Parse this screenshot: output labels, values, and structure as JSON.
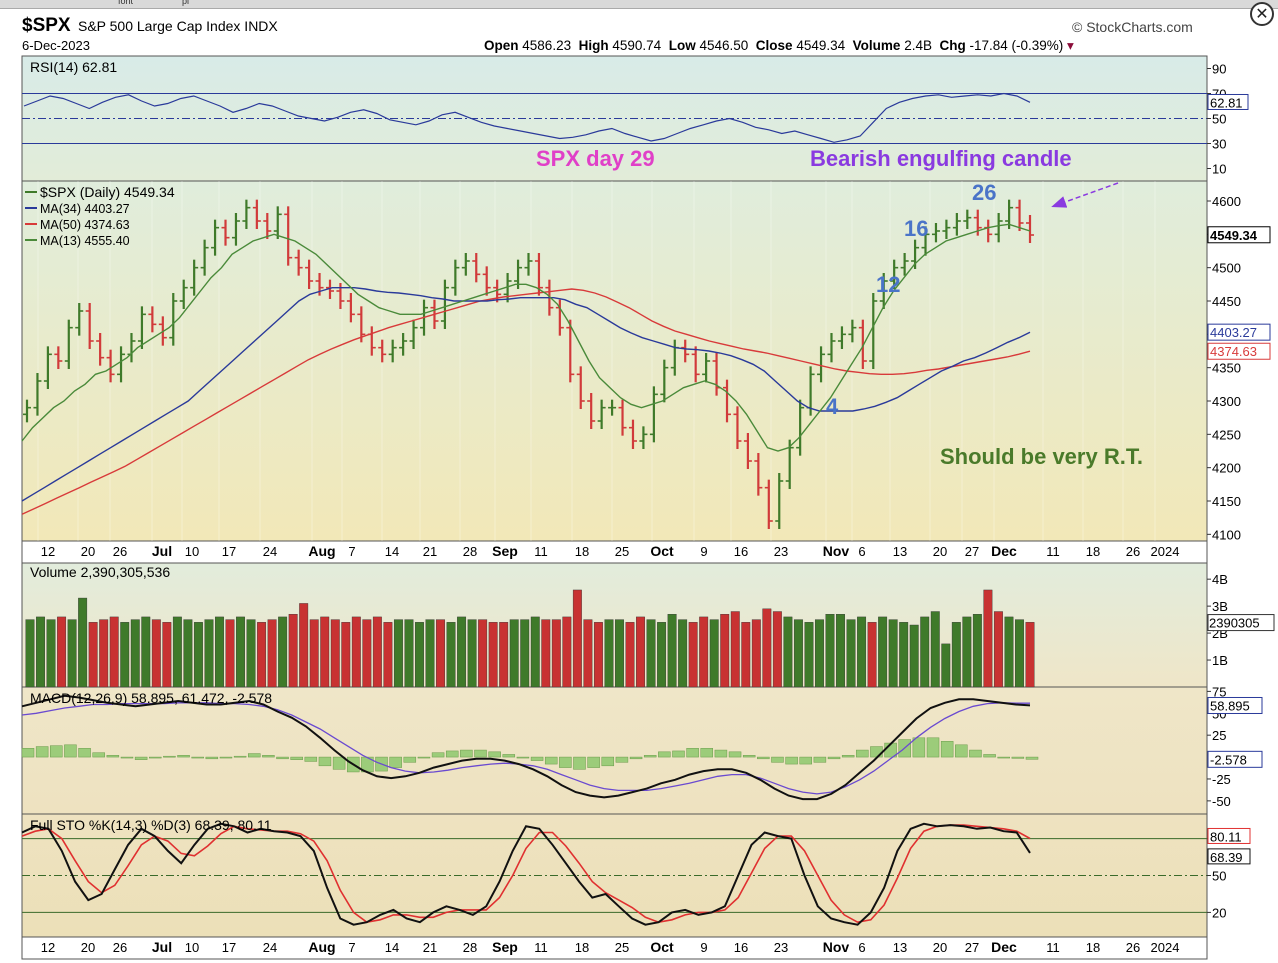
{
  "toolbar_fragment": [
    "font",
    "pl"
  ],
  "header": {
    "symbol": "$SPX",
    "name": "S&P 500 Large Cap Index  INDX",
    "date": "6-Dec-2023",
    "brand": "© StockCharts.com",
    "open_label": "Open",
    "open": "4586.23",
    "high_label": "High",
    "high": "4590.74",
    "low_label": "Low",
    "low": "4546.50",
    "close_label": "Close",
    "close": "4549.34",
    "volume_label": "Volume",
    "volume": "2.4B",
    "chg_label": "Chg",
    "chg": "-17.84 (-0.39%)"
  },
  "colors": {
    "up": "#3f7a2a",
    "down": "#d13a3a",
    "ma34": "#2a3a9a",
    "ma50": "#d83a3a",
    "ma13": "#4a8a3a",
    "annot_pink": "#e040c8",
    "annot_purple": "#8a3ae0",
    "annot_blue": "#4a74c8",
    "annot_green": "#4a7a2a"
  },
  "chart_data": [
    {
      "type": "line",
      "panel": "rsi",
      "legend": "RSI(14) 62.81",
      "ylim": [
        0,
        100
      ],
      "y_ticks": [
        "90",
        "70",
        "50",
        "30",
        "10"
      ],
      "last_value_label": "62.81",
      "overbought": 70,
      "oversold": 30,
      "values": [
        60,
        64,
        68,
        66,
        62,
        58,
        63,
        67,
        69,
        64,
        60,
        62,
        66,
        68,
        64,
        60,
        55,
        58,
        62,
        60,
        56,
        52,
        50,
        48,
        51,
        55,
        57,
        54,
        49,
        47,
        45,
        48,
        53,
        55,
        51,
        47,
        44,
        42,
        40,
        38,
        36,
        34,
        35,
        37,
        40,
        42,
        38,
        35,
        32,
        34,
        38,
        42,
        45,
        48,
        50,
        47,
        43,
        41,
        38,
        40,
        37,
        34,
        31,
        33,
        36,
        47,
        58,
        63,
        66,
        68,
        69,
        67,
        68,
        69,
        68,
        70,
        68,
        63
      ]
    },
    {
      "type": "candlestick",
      "panel": "price",
      "legend": [
        "$SPX (Daily) 4549.34",
        "MA(34) 4403.27",
        "MA(50) 4374.63",
        "MA(13) 4555.40"
      ],
      "ylim": [
        4090,
        4630
      ],
      "y_ticks": [
        "4600",
        "4550",
        "4500",
        "4450",
        "4400",
        "4350",
        "4300",
        "4250",
        "4200",
        "4150",
        "4100"
      ],
      "last_value_labels": [
        "4549.34",
        "4403.27",
        "4374.63"
      ],
      "x_ticks": [
        "12",
        "20",
        "26",
        "Jul",
        "10",
        "17",
        "24",
        "Aug",
        "7",
        "14",
        "21",
        "28",
        "Sep",
        "11",
        "18",
        "25",
        "Oct",
        "9",
        "16",
        "23",
        "Nov",
        "6",
        "13",
        "20",
        "27",
        "Dec",
        "11",
        "18",
        "26",
        "2024"
      ],
      "closes": [
        4290,
        4330,
        4370,
        4360,
        4410,
        4435,
        4390,
        4365,
        4340,
        4370,
        4390,
        4430,
        4415,
        4395,
        4450,
        4470,
        4500,
        4530,
        4560,
        4545,
        4570,
        4590,
        4570,
        4555,
        4580,
        4515,
        4500,
        4480,
        4470,
        4465,
        4450,
        4430,
        4400,
        4380,
        4370,
        4380,
        4390,
        4410,
        4440,
        4420,
        4470,
        4500,
        4510,
        4490,
        4470,
        4460,
        4480,
        4500,
        4510,
        4470,
        4440,
        4410,
        4340,
        4300,
        4270,
        4290,
        4290,
        4260,
        4240,
        4250,
        4310,
        4350,
        4380,
        4370,
        4340,
        4360,
        4320,
        4280,
        4240,
        4210,
        4170,
        4120,
        4180,
        4230,
        4290,
        4340,
        4370,
        4390,
        4400,
        4410,
        4360,
        4450,
        4480,
        4500,
        4510,
        4530,
        4550,
        4555,
        4560,
        4570,
        4575,
        4560,
        4550,
        4570,
        4590,
        4567,
        4549
      ],
      "ma13": [
        4240,
        4260,
        4275,
        4290,
        4300,
        4315,
        4325,
        4340,
        4345,
        4355,
        4365,
        4380,
        4390,
        4400,
        4410,
        4425,
        4445,
        4465,
        4485,
        4500,
        4520,
        4530,
        4540,
        4545,
        4550,
        4545,
        4540,
        4530,
        4520,
        4505,
        4490,
        4475,
        4460,
        4450,
        4440,
        4435,
        4430,
        4430,
        4430,
        4435,
        4440,
        4445,
        4450,
        4455,
        4460,
        4465,
        4470,
        4475,
        4475,
        4470,
        4460,
        4445,
        4420,
        4390,
        4360,
        4335,
        4320,
        4305,
        4295,
        4290,
        4295,
        4300,
        4310,
        4320,
        4325,
        4330,
        4325,
        4315,
        4300,
        4280,
        4255,
        4230,
        4225,
        4230,
        4245,
        4265,
        4285,
        4305,
        4330,
        4355,
        4380,
        4410,
        4440,
        4465,
        4485,
        4505,
        4520,
        4530,
        4540,
        4545,
        4550,
        4555,
        4560,
        4563,
        4565,
        4560,
        4555
      ],
      "ma34": [
        4150,
        4160,
        4170,
        4180,
        4190,
        4200,
        4210,
        4220,
        4230,
        4240,
        4250,
        4260,
        4270,
        4280,
        4290,
        4300,
        4315,
        4330,
        4345,
        4360,
        4375,
        4390,
        4405,
        4420,
        4435,
        4450,
        4460,
        4465,
        4470,
        4470,
        4470,
        4468,
        4465,
        4463,
        4462,
        4460,
        4458,
        4455,
        4453,
        4450,
        4450,
        4450,
        4450,
        4452,
        4453,
        4455,
        4455,
        4455,
        4455,
        4452,
        4445,
        4440,
        4430,
        4420,
        4410,
        4402,
        4395,
        4390,
        4385,
        4380,
        4378,
        4377,
        4375,
        4372,
        4368,
        4362,
        4355,
        4345,
        4330,
        4315,
        4300,
        4290,
        4285,
        4285,
        4285,
        4285,
        4288,
        4292,
        4298,
        4305,
        4315,
        4325,
        4335,
        4345,
        4352,
        4360,
        4365,
        4372,
        4380,
        4388,
        4395,
        4403
      ],
      "ma50": [
        4130,
        4138,
        4146,
        4154,
        4162,
        4170,
        4178,
        4186,
        4194,
        4202,
        4212,
        4222,
        4232,
        4242,
        4252,
        4262,
        4272,
        4282,
        4292,
        4302,
        4312,
        4322,
        4332,
        4342,
        4352,
        4362,
        4370,
        4378,
        4385,
        4392,
        4398,
        4404,
        4410,
        4415,
        4420,
        4425,
        4430,
        4435,
        4440,
        4445,
        4450,
        4453,
        4456,
        4458,
        4460,
        4462,
        4464,
        4466,
        4468,
        4466,
        4462,
        4456,
        4448,
        4440,
        4430,
        4420,
        4412,
        4405,
        4400,
        4395,
        4390,
        4386,
        4382,
        4378,
        4375,
        4372,
        4368,
        4364,
        4360,
        4356,
        4352,
        4348,
        4345,
        4343,
        4341,
        4340,
        4340,
        4341,
        4343,
        4346,
        4348,
        4351,
        4354,
        4357,
        4360,
        4363,
        4366,
        4370,
        4374.63
      ],
      "annotations": [
        "SPX day 29",
        "Bearish engulfing candle",
        "26",
        "16",
        "12",
        "4",
        "Should be very R.T."
      ]
    },
    {
      "type": "bar",
      "panel": "volume",
      "legend": "Volume 2,390,305,536",
      "y_ticks": [
        "4B",
        "3B",
        "2B",
        "1B"
      ],
      "last_value_label": "2390305",
      "unit": "B",
      "values": [
        2.5,
        2.6,
        2.5,
        2.6,
        2.5,
        3.3,
        2.4,
        2.5,
        2.6,
        2.4,
        2.5,
        2.6,
        2.5,
        2.4,
        2.6,
        2.5,
        2.4,
        2.5,
        2.6,
        2.5,
        2.6,
        2.5,
        2.4,
        2.5,
        2.6,
        2.7,
        3.1,
        2.5,
        2.6,
        2.5,
        2.4,
        2.6,
        2.5,
        2.6,
        2.4,
        2.5,
        2.5,
        2.4,
        2.5,
        2.5,
        2.4,
        2.6,
        2.5,
        2.5,
        2.4,
        2.4,
        2.5,
        2.5,
        2.6,
        2.5,
        2.5,
        2.6,
        3.6,
        2.5,
        2.4,
        2.5,
        2.5,
        2.4,
        2.6,
        2.5,
        2.4,
        2.7,
        2.5,
        2.4,
        2.6,
        2.5,
        2.7,
        2.8,
        2.4,
        2.5,
        2.9,
        2.8,
        2.6,
        2.5,
        2.4,
        2.5,
        2.7,
        2.7,
        2.5,
        2.6,
        2.4,
        2.6,
        2.5,
        2.4,
        2.3,
        2.6,
        2.8,
        1.6,
        2.4,
        2.6,
        2.7,
        3.6,
        2.8,
        2.6,
        2.5,
        2.4
      ]
    },
    {
      "type": "line",
      "panel": "macd",
      "legend": "MACD(12,26,9) 58.895, 61.472, -2.578",
      "y_ticks": [
        "75",
        "50",
        "25",
        "-25",
        "-50"
      ],
      "last_value_labels": [
        "58.895",
        "-2.578"
      ],
      "macd": [
        58,
        62,
        66,
        70,
        68,
        65,
        62,
        60,
        58,
        60,
        62,
        64,
        62,
        60,
        60,
        62,
        64,
        60,
        52,
        45,
        35,
        22,
        8,
        -5,
        -15,
        -22,
        -24,
        -22,
        -18,
        -12,
        -8,
        -4,
        -2,
        -2,
        -4,
        -8,
        -14,
        -22,
        -32,
        -40,
        -44,
        -46,
        -44,
        -40,
        -36,
        -30,
        -26,
        -20,
        -16,
        -14,
        -14,
        -18,
        -26,
        -36,
        -44,
        -48,
        -48,
        -42,
        -32,
        -18,
        -4,
        12,
        28,
        44,
        56,
        62,
        66,
        66,
        64,
        62,
        60,
        59
      ],
      "signal": [
        48,
        50,
        53,
        56,
        58,
        60,
        60,
        61,
        61,
        61,
        61,
        62,
        62,
        62,
        61,
        61,
        60,
        58,
        54,
        48,
        40,
        32,
        22,
        12,
        2,
        -6,
        -12,
        -16,
        -18,
        -17,
        -15,
        -12,
        -10,
        -8,
        -7,
        -8,
        -10,
        -14,
        -20,
        -26,
        -32,
        -36,
        -38,
        -38,
        -38,
        -36,
        -33,
        -30,
        -26,
        -22,
        -20,
        -20,
        -24,
        -30,
        -36,
        -40,
        -42,
        -40,
        -34,
        -26,
        -16,
        -4,
        8,
        22,
        34,
        44,
        52,
        58,
        61,
        62,
        61.5,
        61.47
      ],
      "histogram": [
        10,
        12,
        13,
        14,
        10,
        5,
        2,
        -1,
        -3,
        -1,
        1,
        2,
        0,
        -2,
        -1,
        1,
        4,
        2,
        -2,
        -3,
        -5,
        -10,
        -14,
        -17,
        -17,
        -16,
        -12,
        -6,
        0,
        5,
        7,
        8,
        8,
        6,
        3,
        0,
        -4,
        -8,
        -12,
        -14,
        -12,
        -10,
        -6,
        -2,
        2,
        6,
        7,
        10,
        10,
        8,
        6,
        2,
        -2,
        -6,
        -8,
        -8,
        -6,
        -2,
        2,
        8,
        12,
        16,
        20,
        22,
        22,
        18,
        14,
        8,
        3,
        0,
        -1.5,
        -2.578
      ]
    },
    {
      "type": "line",
      "panel": "stochastic",
      "legend": "Full STO %K(14,3) %D(3) 68.39, 80.11",
      "y_ticks": [
        "80",
        "50",
        "20"
      ],
      "last_value_labels": [
        "80.11",
        "68.39"
      ],
      "k": [
        85,
        90,
        88,
        70,
        45,
        30,
        35,
        55,
        75,
        88,
        82,
        70,
        60,
        75,
        88,
        92,
        90,
        85,
        88,
        86,
        85,
        82,
        70,
        40,
        15,
        10,
        12,
        18,
        22,
        15,
        12,
        20,
        25,
        22,
        18,
        25,
        45,
        70,
        90,
        88,
        75,
        60,
        45,
        32,
        35,
        25,
        15,
        10,
        12,
        20,
        22,
        18,
        20,
        25,
        50,
        75,
        85,
        82,
        80,
        50,
        25,
        15,
        12,
        10,
        20,
        40,
        70,
        88,
        92,
        90,
        91,
        90,
        88,
        89,
        86,
        85,
        68.39
      ],
      "d": [
        82,
        86,
        88,
        80,
        62,
        45,
        36,
        42,
        58,
        75,
        82,
        78,
        68,
        66,
        74,
        84,
        90,
        88,
        87,
        86,
        86,
        84,
        78,
        62,
        38,
        20,
        12,
        14,
        18,
        18,
        16,
        16,
        20,
        22,
        22,
        22,
        32,
        50,
        72,
        85,
        85,
        74,
        60,
        45,
        36,
        30,
        24,
        16,
        12,
        14,
        18,
        20,
        20,
        22,
        32,
        52,
        72,
        82,
        82,
        70,
        50,
        30,
        18,
        12,
        14,
        26,
        48,
        72,
        86,
        90,
        91,
        91,
        90,
        89,
        88,
        86,
        80.11
      ]
    }
  ]
}
